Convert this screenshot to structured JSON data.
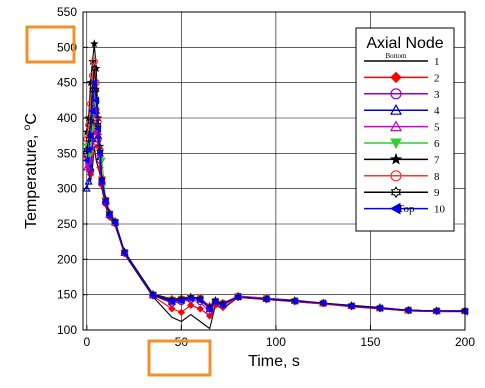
{
  "chart_data": {
    "type": "line",
    "xlabel": "Time, s",
    "ylabel": "Temperature, °C",
    "ylabel_main": "Temperature, ",
    "ylabel_sup": "o",
    "ylabel_unit": "C",
    "xlim": [
      -2,
      200
    ],
    "ylim": [
      100,
      550
    ],
    "xticks": [
      0,
      50,
      100,
      150,
      200
    ],
    "yticks": [
      100,
      150,
      200,
      250,
      300,
      350,
      400,
      450,
      500,
      550
    ],
    "grid": true,
    "legend": {
      "title": "Axial Node",
      "placement": "top-right",
      "bottom_label": "Bottom",
      "top_label": "Top"
    },
    "highlight_color": "#f0922b",
    "series": [
      {
        "name": "1",
        "color": "#000000",
        "marker": "none",
        "x": [
          0,
          1,
          2,
          3,
          4,
          5,
          6,
          7,
          8,
          10,
          12,
          15,
          20,
          35,
          45,
          50,
          55,
          60,
          65,
          68,
          72,
          80,
          95,
          110,
          125,
          140,
          155,
          170,
          185,
          200
        ],
        "y": [
          340,
          325,
          310,
          330,
          360,
          340,
          330,
          320,
          300,
          275,
          258,
          248,
          207,
          147,
          118,
          112,
          122,
          112,
          102,
          135,
          130,
          146,
          143,
          140,
          137,
          133,
          130,
          127,
          126,
          126
        ]
      },
      {
        "name": "2",
        "color": "#ff0000",
        "marker": "diamond",
        "x": [
          0,
          1,
          2,
          3,
          4,
          5,
          6,
          7,
          8,
          10,
          12,
          15,
          20,
          35,
          45,
          50,
          55,
          60,
          65,
          68,
          72,
          80,
          95,
          110,
          125,
          140,
          155,
          170,
          185,
          200
        ],
        "y": [
          345,
          330,
          320,
          350,
          390,
          380,
          360,
          330,
          305,
          278,
          260,
          250,
          208,
          148,
          130,
          125,
          135,
          130,
          120,
          135,
          132,
          146,
          143,
          140,
          137,
          133,
          130,
          127,
          126,
          126
        ]
      },
      {
        "name": "3",
        "color": "#9900cc",
        "marker": "circle",
        "x": [
          0,
          1,
          2,
          3,
          4,
          5,
          6,
          7,
          8,
          10,
          12,
          15,
          20,
          35,
          45,
          50,
          55,
          60,
          65,
          68,
          72,
          80,
          95,
          110,
          125,
          140,
          155,
          170,
          185,
          200
        ],
        "y": [
          350,
          335,
          325,
          360,
          420,
          400,
          370,
          340,
          308,
          280,
          262,
          252,
          209,
          149,
          138,
          140,
          143,
          140,
          125,
          140,
          135,
          147,
          144,
          141,
          138,
          134,
          131,
          128,
          127,
          127
        ]
      },
      {
        "name": "4",
        "color": "#0000cc",
        "marker": "triangle",
        "x": [
          0,
          1,
          2,
          3,
          4,
          5,
          6,
          7,
          8,
          10,
          12,
          15,
          20,
          35,
          45,
          50,
          55,
          60,
          65,
          68,
          72,
          80,
          95,
          110,
          125,
          140,
          155,
          170,
          185,
          200
        ],
        "y": [
          300,
          310,
          330,
          370,
          430,
          410,
          375,
          345,
          310,
          282,
          263,
          252,
          209,
          149,
          140,
          142,
          145,
          143,
          130,
          140,
          136,
          147,
          144,
          141,
          138,
          134,
          131,
          128,
          127,
          127
        ]
      },
      {
        "name": "5",
        "color": "#cc00cc",
        "marker": "triangle",
        "x": [
          0,
          1,
          2,
          3,
          4,
          5,
          6,
          7,
          8,
          10,
          12,
          15,
          20,
          35,
          45,
          50,
          55,
          60,
          65,
          68,
          72,
          80,
          95,
          110,
          125,
          140,
          155,
          170,
          185,
          200
        ],
        "y": [
          330,
          340,
          345,
          380,
          440,
          415,
          380,
          350,
          312,
          283,
          264,
          253,
          210,
          150,
          142,
          143,
          146,
          144,
          132,
          141,
          137,
          147,
          144,
          141,
          138,
          134,
          131,
          128,
          127,
          127
        ]
      },
      {
        "name": "6",
        "color": "#33cc33",
        "marker": "triangle-down",
        "x": [
          0,
          1,
          2,
          3,
          4,
          5,
          6,
          7,
          8,
          10,
          12,
          15,
          20,
          35,
          45,
          50,
          55,
          60,
          65,
          68,
          72,
          80,
          95,
          110,
          125,
          140,
          155,
          170,
          185,
          200
        ],
        "y": [
          360,
          345,
          350,
          385,
          450,
          420,
          385,
          350,
          340,
          284,
          265,
          253,
          210,
          150,
          143,
          144,
          146,
          145,
          133,
          141,
          138,
          148,
          145,
          141,
          138,
          134,
          131,
          128,
          127,
          127
        ]
      },
      {
        "name": "7",
        "color": "#000000",
        "marker": "star",
        "x": [
          0,
          1,
          2,
          3,
          4,
          5,
          6,
          7,
          8,
          10,
          12,
          15,
          20,
          35,
          45,
          50,
          55,
          60,
          65,
          68,
          72,
          80,
          95,
          110,
          125,
          140,
          155,
          170,
          185,
          200
        ],
        "y": [
          380,
          400,
          450,
          480,
          505,
          470,
          400,
          360,
          315,
          285,
          266,
          254,
          211,
          151,
          144,
          145,
          147,
          145,
          134,
          142,
          138,
          148,
          145,
          142,
          138,
          135,
          132,
          128,
          127,
          127
        ]
      },
      {
        "name": "8",
        "color": "#ff3333",
        "marker": "circle",
        "x": [
          0,
          1,
          2,
          3,
          4,
          5,
          6,
          7,
          8,
          10,
          12,
          15,
          20,
          35,
          45,
          50,
          55,
          60,
          65,
          68,
          72,
          80,
          95,
          110,
          125,
          140,
          155,
          170,
          185,
          200
        ],
        "y": [
          370,
          390,
          420,
          460,
          480,
          450,
          395,
          355,
          314,
          284,
          265,
          253,
          210,
          150,
          143,
          144,
          146,
          145,
          133,
          141,
          138,
          148,
          145,
          141,
          138,
          134,
          131,
          128,
          127,
          127
        ]
      },
      {
        "name": "9",
        "color": "#000000",
        "marker": "hexagram",
        "x": [
          0,
          1,
          2,
          3,
          4,
          5,
          6,
          7,
          8,
          10,
          12,
          15,
          20,
          35,
          45,
          50,
          55,
          60,
          65,
          68,
          72,
          80,
          95,
          110,
          125,
          140,
          155,
          170,
          185,
          200
        ],
        "y": [
          355,
          370,
          395,
          440,
          470,
          440,
          390,
          352,
          312,
          283,
          264,
          253,
          210,
          150,
          142,
          143,
          146,
          144,
          132,
          141,
          137,
          147,
          144,
          141,
          138,
          134,
          131,
          128,
          127,
          127
        ]
      },
      {
        "name": "10",
        "color": "#0000ff",
        "marker": "triangle-left",
        "x": [
          0,
          1,
          2,
          3,
          4,
          5,
          6,
          7,
          8,
          10,
          12,
          15,
          20,
          35,
          45,
          50,
          55,
          60,
          65,
          68,
          72,
          80,
          95,
          110,
          125,
          140,
          155,
          170,
          185,
          200
        ],
        "y": [
          340,
          355,
          375,
          410,
          450,
          425,
          385,
          350,
          311,
          282,
          263,
          252,
          209,
          149,
          141,
          142,
          145,
          143,
          131,
          140,
          136,
          147,
          144,
          141,
          138,
          134,
          131,
          128,
          127,
          126
        ]
      }
    ]
  }
}
